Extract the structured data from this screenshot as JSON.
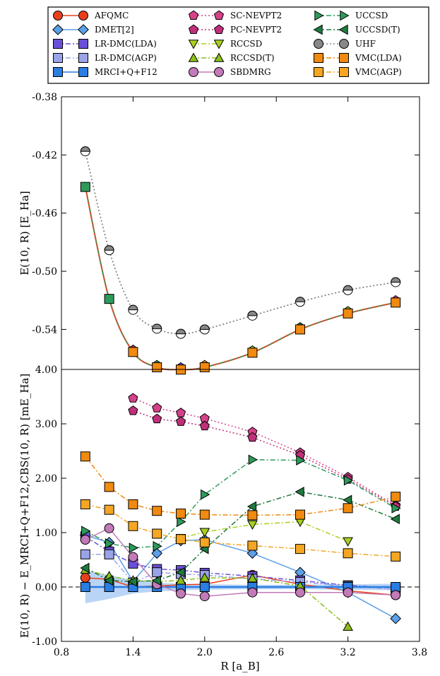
{
  "chart_data": [
    {
      "type": "line",
      "ylabel": "E(10, R) [E_Ha]",
      "ylim": [
        -0.5675,
        -0.38
      ],
      "xlim": [
        0.8,
        3.8
      ],
      "yticks": [
        "-0.38",
        "-0.42",
        "-0.46",
        "-0.50",
        "-0.54"
      ],
      "grid": false,
      "series": [
        {
          "name": "MRCI+Q+F12",
          "x": [
            1.0,
            1.2,
            1.4,
            1.6,
            1.8,
            2.0,
            2.4,
            2.8,
            3.2,
            3.6
          ],
          "y": [
            -0.442,
            -0.519,
            -0.5555,
            -0.566,
            -0.5676,
            -0.566,
            -0.556,
            -0.54,
            -0.529,
            -0.5215
          ]
        },
        {
          "name": "UHF",
          "x": [
            1.0,
            1.2,
            1.4,
            1.6,
            1.8,
            2.0,
            2.4,
            2.8,
            3.2,
            3.6
          ],
          "y": [
            -0.4175,
            -0.4855,
            -0.5265,
            -0.5395,
            -0.543,
            -0.54,
            -0.5305,
            -0.521,
            -0.513,
            -0.5075
          ]
        }
      ]
    },
    {
      "type": "scatter",
      "xlabel": "R [a_B]",
      "ylabel": "E(10, R) − E_MRCI+Q+F12,CBS(10, R) [mE_Ha]",
      "xlim": [
        0.8,
        3.8
      ],
      "ylim": [
        -1.0,
        4.0
      ],
      "xticks": [
        "0.8",
        "1.4",
        "2.0",
        "2.6",
        "3.2",
        "3.8"
      ],
      "yticks": [
        "4.00",
        "3.00",
        "2.00",
        "1.00",
        "0.00",
        "-1.00"
      ],
      "top_ytick": "4.00",
      "zero_line": "dashed",
      "series": [
        {
          "name": "AFQMC",
          "color": "#e8401c",
          "x": [
            1.0,
            1.2,
            1.4,
            1.6,
            1.8,
            2.0,
            2.4,
            2.8,
            3.2,
            3.6
          ],
          "y": [
            0.17,
            0.14,
            0.0,
            0.02,
            0.04,
            0.05,
            0.22,
            0.05,
            -0.07,
            -0.15
          ]
        },
        {
          "name": "DMET[2]",
          "color": "#5ca0e8",
          "x": [
            1.0,
            1.2,
            1.4,
            1.6,
            1.8,
            2.0,
            2.4,
            2.8,
            3.2,
            3.6
          ],
          "y": [
            0.95,
            0.82,
            0.1,
            0.62,
            0.85,
            0.87,
            0.62,
            0.27,
            -0.1,
            -0.58
          ]
        },
        {
          "name": "LR-DMC(LDA)",
          "color": "#6a4fd8",
          "x": [
            1.0,
            1.2,
            1.4,
            1.6,
            1.8,
            2.0,
            2.4,
            2.8,
            3.2,
            3.6
          ],
          "y": [
            0.93,
            0.65,
            0.43,
            0.33,
            0.31,
            0.26,
            0.2,
            0.12,
            0.03,
            -0.02
          ]
        },
        {
          "name": "LR-DMC(AGP)",
          "color": "#9aa2e8",
          "x": [
            1.0,
            1.2,
            1.4,
            1.6,
            1.8,
            2.0,
            2.4,
            2.8,
            3.2,
            3.6
          ],
          "y": [
            0.6,
            0.6,
            0.08,
            0.27,
            0.24,
            0.22,
            0.15,
            0.09,
            0.02,
            -0.05
          ]
        },
        {
          "name": "MRCI+Q+F12",
          "color": "#2a7de1",
          "x": [
            1.0,
            1.2,
            1.4,
            1.6,
            1.8,
            2.0,
            2.4,
            2.8,
            3.2,
            3.6
          ],
          "y": [
            0.0,
            0.0,
            0.0,
            0.0,
            0.0,
            0.0,
            0.0,
            0.0,
            0.0,
            0.0
          ]
        },
        {
          "name": "SC-NEVPT2",
          "color": "#d6418a",
          "x": [
            1.4,
            1.6,
            1.8,
            2.0,
            2.4,
            2.8,
            3.2,
            3.6
          ],
          "y": [
            3.47,
            3.29,
            3.2,
            3.1,
            2.85,
            2.47,
            2.02,
            1.5
          ]
        },
        {
          "name": "PC-NEVPT2",
          "color": "#c0307a",
          "x": [
            1.4,
            1.6,
            1.8,
            2.0,
            2.4,
            2.8,
            3.2,
            3.6
          ],
          "y": [
            3.24,
            3.09,
            3.04,
            2.96,
            2.75,
            2.42,
            1.98,
            1.48
          ]
        },
        {
          "name": "RCCSD",
          "color": "#a8d020",
          "x": [
            1.8,
            2.0,
            2.4,
            2.8,
            3.2
          ],
          "y": [
            0.9,
            1.01,
            1.15,
            1.2,
            0.84
          ]
        },
        {
          "name": "RCCSD(T)",
          "color": "#8cbf1a",
          "x": [
            1.0,
            1.2,
            1.4,
            1.6,
            1.8,
            2.0,
            2.4,
            2.8,
            3.2
          ],
          "y": [
            0.32,
            0.2,
            0.12,
            0.1,
            0.12,
            0.17,
            0.16,
            0.02,
            -0.73
          ]
        },
        {
          "name": "SBDMRG",
          "color": "#c27ab8",
          "x": [
            1.0,
            1.2,
            1.4,
            1.6,
            1.8,
            2.0,
            2.4,
            2.8,
            3.2,
            3.6
          ],
          "y": [
            0.87,
            1.08,
            0.55,
            0.05,
            -0.12,
            -0.17,
            -0.1,
            -0.1,
            -0.1,
            -0.15
          ]
        },
        {
          "name": "UCCSD",
          "color": "#2e9a5a",
          "x": [
            1.0,
            1.2,
            1.4,
            1.6,
            1.8,
            2.0,
            2.4,
            2.8,
            3.2,
            3.6
          ],
          "y": [
            1.03,
            0.8,
            0.72,
            0.75,
            1.2,
            1.7,
            2.34,
            2.33,
            1.96,
            1.45
          ]
        },
        {
          "name": "UCCSD(T)",
          "color": "#1f7a40",
          "x": [
            1.0,
            1.2,
            1.4,
            1.6,
            1.8,
            2.0,
            2.4,
            2.8,
            3.2,
            3.6
          ],
          "y": [
            0.35,
            0.12,
            0.1,
            0.12,
            0.27,
            0.7,
            1.48,
            1.75,
            1.6,
            1.25
          ]
        },
        {
          "name": "VMC(LDA)",
          "color": "#f08a10",
          "x": [
            1.0,
            1.2,
            1.4,
            1.6,
            1.8,
            2.0,
            2.4,
            2.8,
            3.2,
            3.6
          ],
          "y": [
            2.4,
            1.84,
            1.52,
            1.4,
            1.35,
            1.33,
            1.32,
            1.33,
            1.45,
            1.66
          ]
        },
        {
          "name": "VMC(AGP)",
          "color": "#f5a623",
          "x": [
            1.0,
            1.2,
            1.4,
            1.6,
            1.8,
            2.0,
            2.4,
            2.8,
            3.2,
            3.6
          ],
          "y": [
            1.52,
            1.42,
            1.12,
            0.98,
            0.88,
            0.82,
            0.76,
            0.7,
            0.62,
            0.56
          ]
        }
      ]
    }
  ],
  "legend": [
    {
      "name": "AFQMC",
      "marker": "circle",
      "color": "#e8401c",
      "dash": "solid"
    },
    {
      "name": "DMET[2]",
      "marker": "diamond",
      "color": "#5ca0e8",
      "dash": "solid"
    },
    {
      "name": "LR-DMC(LDA)",
      "marker": "square",
      "color": "#6a4fd8",
      "dash": "dashdot"
    },
    {
      "name": "LR-DMC(AGP)",
      "marker": "square",
      "color": "#9aa2e8",
      "dash": "dashdot"
    },
    {
      "name": "MRCI+Q+F12",
      "marker": "square",
      "color": "#2a7de1",
      "dash": "solid"
    },
    {
      "name": "SC-NEVPT2",
      "marker": "pentagon",
      "color": "#d6418a",
      "dash": "dotted"
    },
    {
      "name": "PC-NEVPT2",
      "marker": "pentagon",
      "color": "#c0307a",
      "dash": "dotted"
    },
    {
      "name": "RCCSD",
      "marker": "triangle-down",
      "color": "#a8d020",
      "dash": "dashdot"
    },
    {
      "name": "RCCSD(T)",
      "marker": "triangle-up",
      "color": "#8cbf1a",
      "dash": "dashdot"
    },
    {
      "name": "SBDMRG",
      "marker": "circle",
      "color": "#c27ab8",
      "dash": "solid"
    },
    {
      "name": "UCCSD",
      "marker": "triangle-right",
      "color": "#2e9a5a",
      "dash": "dashdot"
    },
    {
      "name": "UCCSD(T)",
      "marker": "triangle-left",
      "color": "#1f7a40",
      "dash": "dashdot"
    },
    {
      "name": "UHF",
      "marker": "circle",
      "color": "#888888",
      "dash": "dotted"
    },
    {
      "name": "VMC(LDA)",
      "marker": "square",
      "color": "#f08a10",
      "dash": "dashdot"
    },
    {
      "name": "VMC(AGP)",
      "marker": "square",
      "color": "#f5a623",
      "dash": "dashdot"
    }
  ]
}
